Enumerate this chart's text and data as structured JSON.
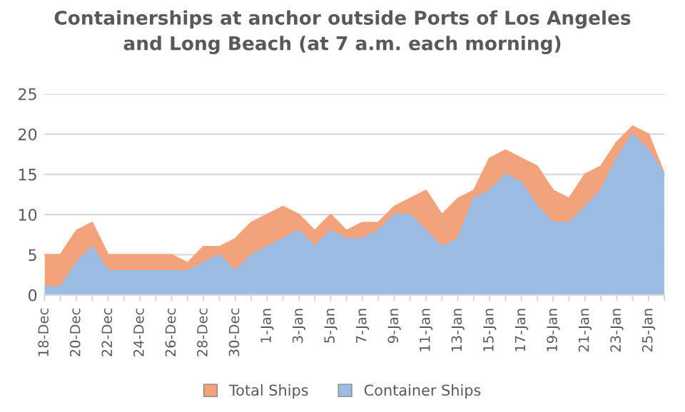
{
  "chart_data": {
    "type": "area",
    "title": "Containerships at anchor outside Ports of Los Angeles\nand Long Beach (at 7 a.m. each morning)",
    "categories": [
      "18-Dec",
      null,
      "20-Dec",
      null,
      "22-Dec",
      null,
      "24-Dec",
      null,
      "26-Dec",
      null,
      "28-Dec",
      null,
      "30-Dec",
      null,
      "1-Jan",
      null,
      "3-Jan",
      null,
      "5-Jan",
      null,
      "7-Jan",
      null,
      "9-Jan",
      null,
      "11-Jan",
      null,
      "13-Jan",
      null,
      "15-Jan",
      null,
      "17-Jan",
      null,
      "19-Jan",
      null,
      "21-Jan",
      null,
      "23-Jan",
      null,
      "25-Jan",
      null
    ],
    "series": [
      {
        "name": "Total Ships",
        "color": "#f2a37c",
        "values": [
          5,
          5,
          8,
          9,
          5,
          5,
          5,
          5,
          5,
          4,
          6,
          6,
          7,
          9,
          10,
          11,
          10,
          8,
          10,
          8,
          9,
          9,
          11,
          12,
          13,
          10,
          12,
          13,
          17,
          18,
          17,
          16,
          13,
          12,
          15,
          16,
          19,
          21,
          20,
          15
        ]
      },
      {
        "name": "Container Ships",
        "color": "#9dbce4",
        "values": [
          1,
          1,
          4,
          6,
          3,
          3,
          3,
          3,
          3,
          3,
          4,
          5,
          3,
          5,
          6,
          7,
          8,
          6,
          8,
          7,
          7,
          8,
          10,
          10,
          8,
          6,
          7,
          12,
          13,
          15,
          14,
          11,
          9,
          9,
          11,
          13,
          17,
          20,
          18,
          15
        ]
      }
    ],
    "ylim": [
      0,
      25
    ],
    "yticks": [
      0,
      5,
      10,
      15,
      20,
      25
    ],
    "grid": "y",
    "legend": "bottom"
  }
}
